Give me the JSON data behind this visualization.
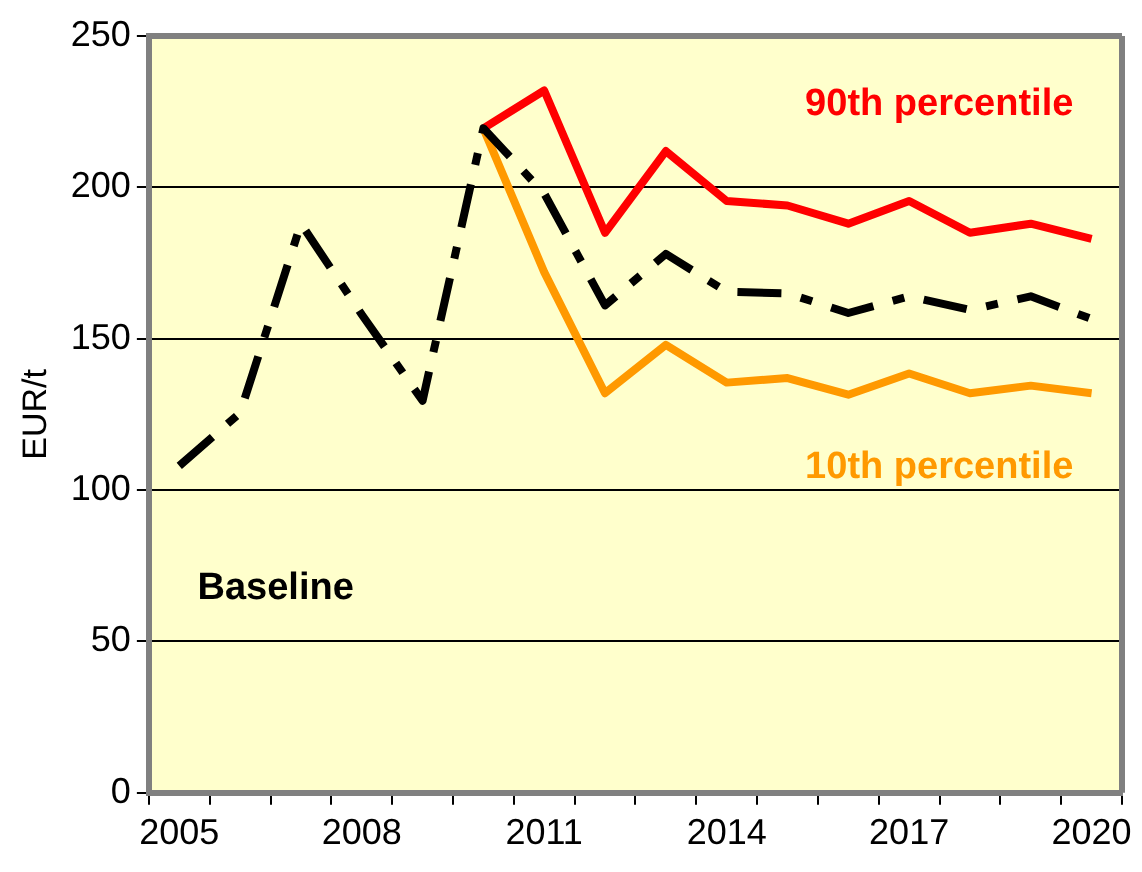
{
  "chart_data": {
    "type": "line",
    "ylabel": "EUR/t",
    "categories": [
      "2005",
      null,
      null,
      "2008",
      null,
      null,
      "2011",
      null,
      null,
      "2014",
      null,
      null,
      "2017",
      null,
      null,
      "2020"
    ],
    "series": [
      {
        "name": "Baseline",
        "color": "#000000",
        "line_style": "dashed",
        "values": [
          108,
          125.5,
          188,
          158,
          129.5,
          219.5,
          198,
          161,
          178,
          165.5,
          165,
          158.5,
          164,
          159.5,
          164,
          156.5
        ]
      },
      {
        "name": "90th percentile",
        "color": "#ff0000",
        "line_style": "solid",
        "values": [
          null,
          null,
          null,
          null,
          null,
          219.5,
          232,
          185,
          212,
          195.5,
          194,
          188,
          195.5,
          185,
          188,
          183
        ]
      },
      {
        "name": "10th percentile",
        "color": "#ff9900",
        "line_style": "solid",
        "values": [
          null,
          null,
          null,
          null,
          null,
          219.5,
          172,
          132,
          148,
          135.5,
          137,
          131.5,
          138.5,
          132,
          134.5,
          132
        ]
      }
    ],
    "ylim": [
      0,
      250
    ],
    "yticks": [
      0,
      50,
      100,
      150,
      200,
      250
    ],
    "grid": "y",
    "legend": false,
    "marker": "none"
  }
}
